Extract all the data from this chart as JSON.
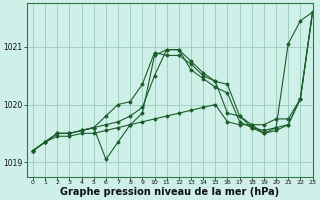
{
  "background_color": "#cff0e8",
  "plot_bg_color": "#cff0e8",
  "grid_color": "#99ccbb",
  "line_color": "#1a5c2a",
  "xlabel": "Graphe pression niveau de la mer (hPa)",
  "xlabel_fontsize": 7,
  "xlim": [
    -0.5,
    23
  ],
  "ylim": [
    1018.75,
    1021.75
  ],
  "yticks": [
    1019,
    1020,
    1021
  ],
  "xticks": [
    0,
    1,
    2,
    3,
    4,
    5,
    6,
    7,
    8,
    9,
    10,
    11,
    12,
    13,
    14,
    15,
    16,
    17,
    18,
    19,
    20,
    21,
    22,
    23
  ],
  "series": [
    [
      1019.2,
      1019.35,
      1019.45,
      1019.45,
      1019.5,
      1019.5,
      1019.55,
      1019.6,
      1019.65,
      1019.7,
      1019.75,
      1019.8,
      1019.85,
      1019.9,
      1019.95,
      1020.0,
      1019.7,
      1019.65,
      1019.65,
      1019.65,
      1019.75,
      1019.75,
      1020.1,
      1021.6
    ],
    [
      1019.2,
      1019.35,
      1019.5,
      1019.5,
      1019.55,
      1019.6,
      1019.05,
      1019.35,
      1019.65,
      1019.85,
      1020.85,
      1020.95,
      1020.95,
      1020.75,
      1020.55,
      1020.4,
      1019.85,
      1019.8,
      1019.6,
      1019.5,
      1019.55,
      1019.65,
      1020.1,
      1021.6
    ],
    [
      1019.2,
      1019.35,
      1019.5,
      1019.5,
      1019.55,
      1019.6,
      1019.8,
      1020.0,
      1020.05,
      1020.35,
      1020.9,
      1020.85,
      1020.85,
      1020.7,
      1020.5,
      1020.4,
      1020.35,
      1019.8,
      1019.65,
      1019.5,
      1019.6,
      1021.05,
      1021.45,
      1021.6
    ],
    [
      1019.2,
      1019.35,
      1019.5,
      1019.5,
      1019.55,
      1019.6,
      1019.65,
      1019.7,
      1019.8,
      1019.95,
      1020.5,
      1020.95,
      1020.95,
      1020.6,
      1020.45,
      1020.3,
      1020.2,
      1019.7,
      1019.6,
      1019.55,
      1019.6,
      1019.65,
      1020.1,
      1021.6
    ]
  ]
}
